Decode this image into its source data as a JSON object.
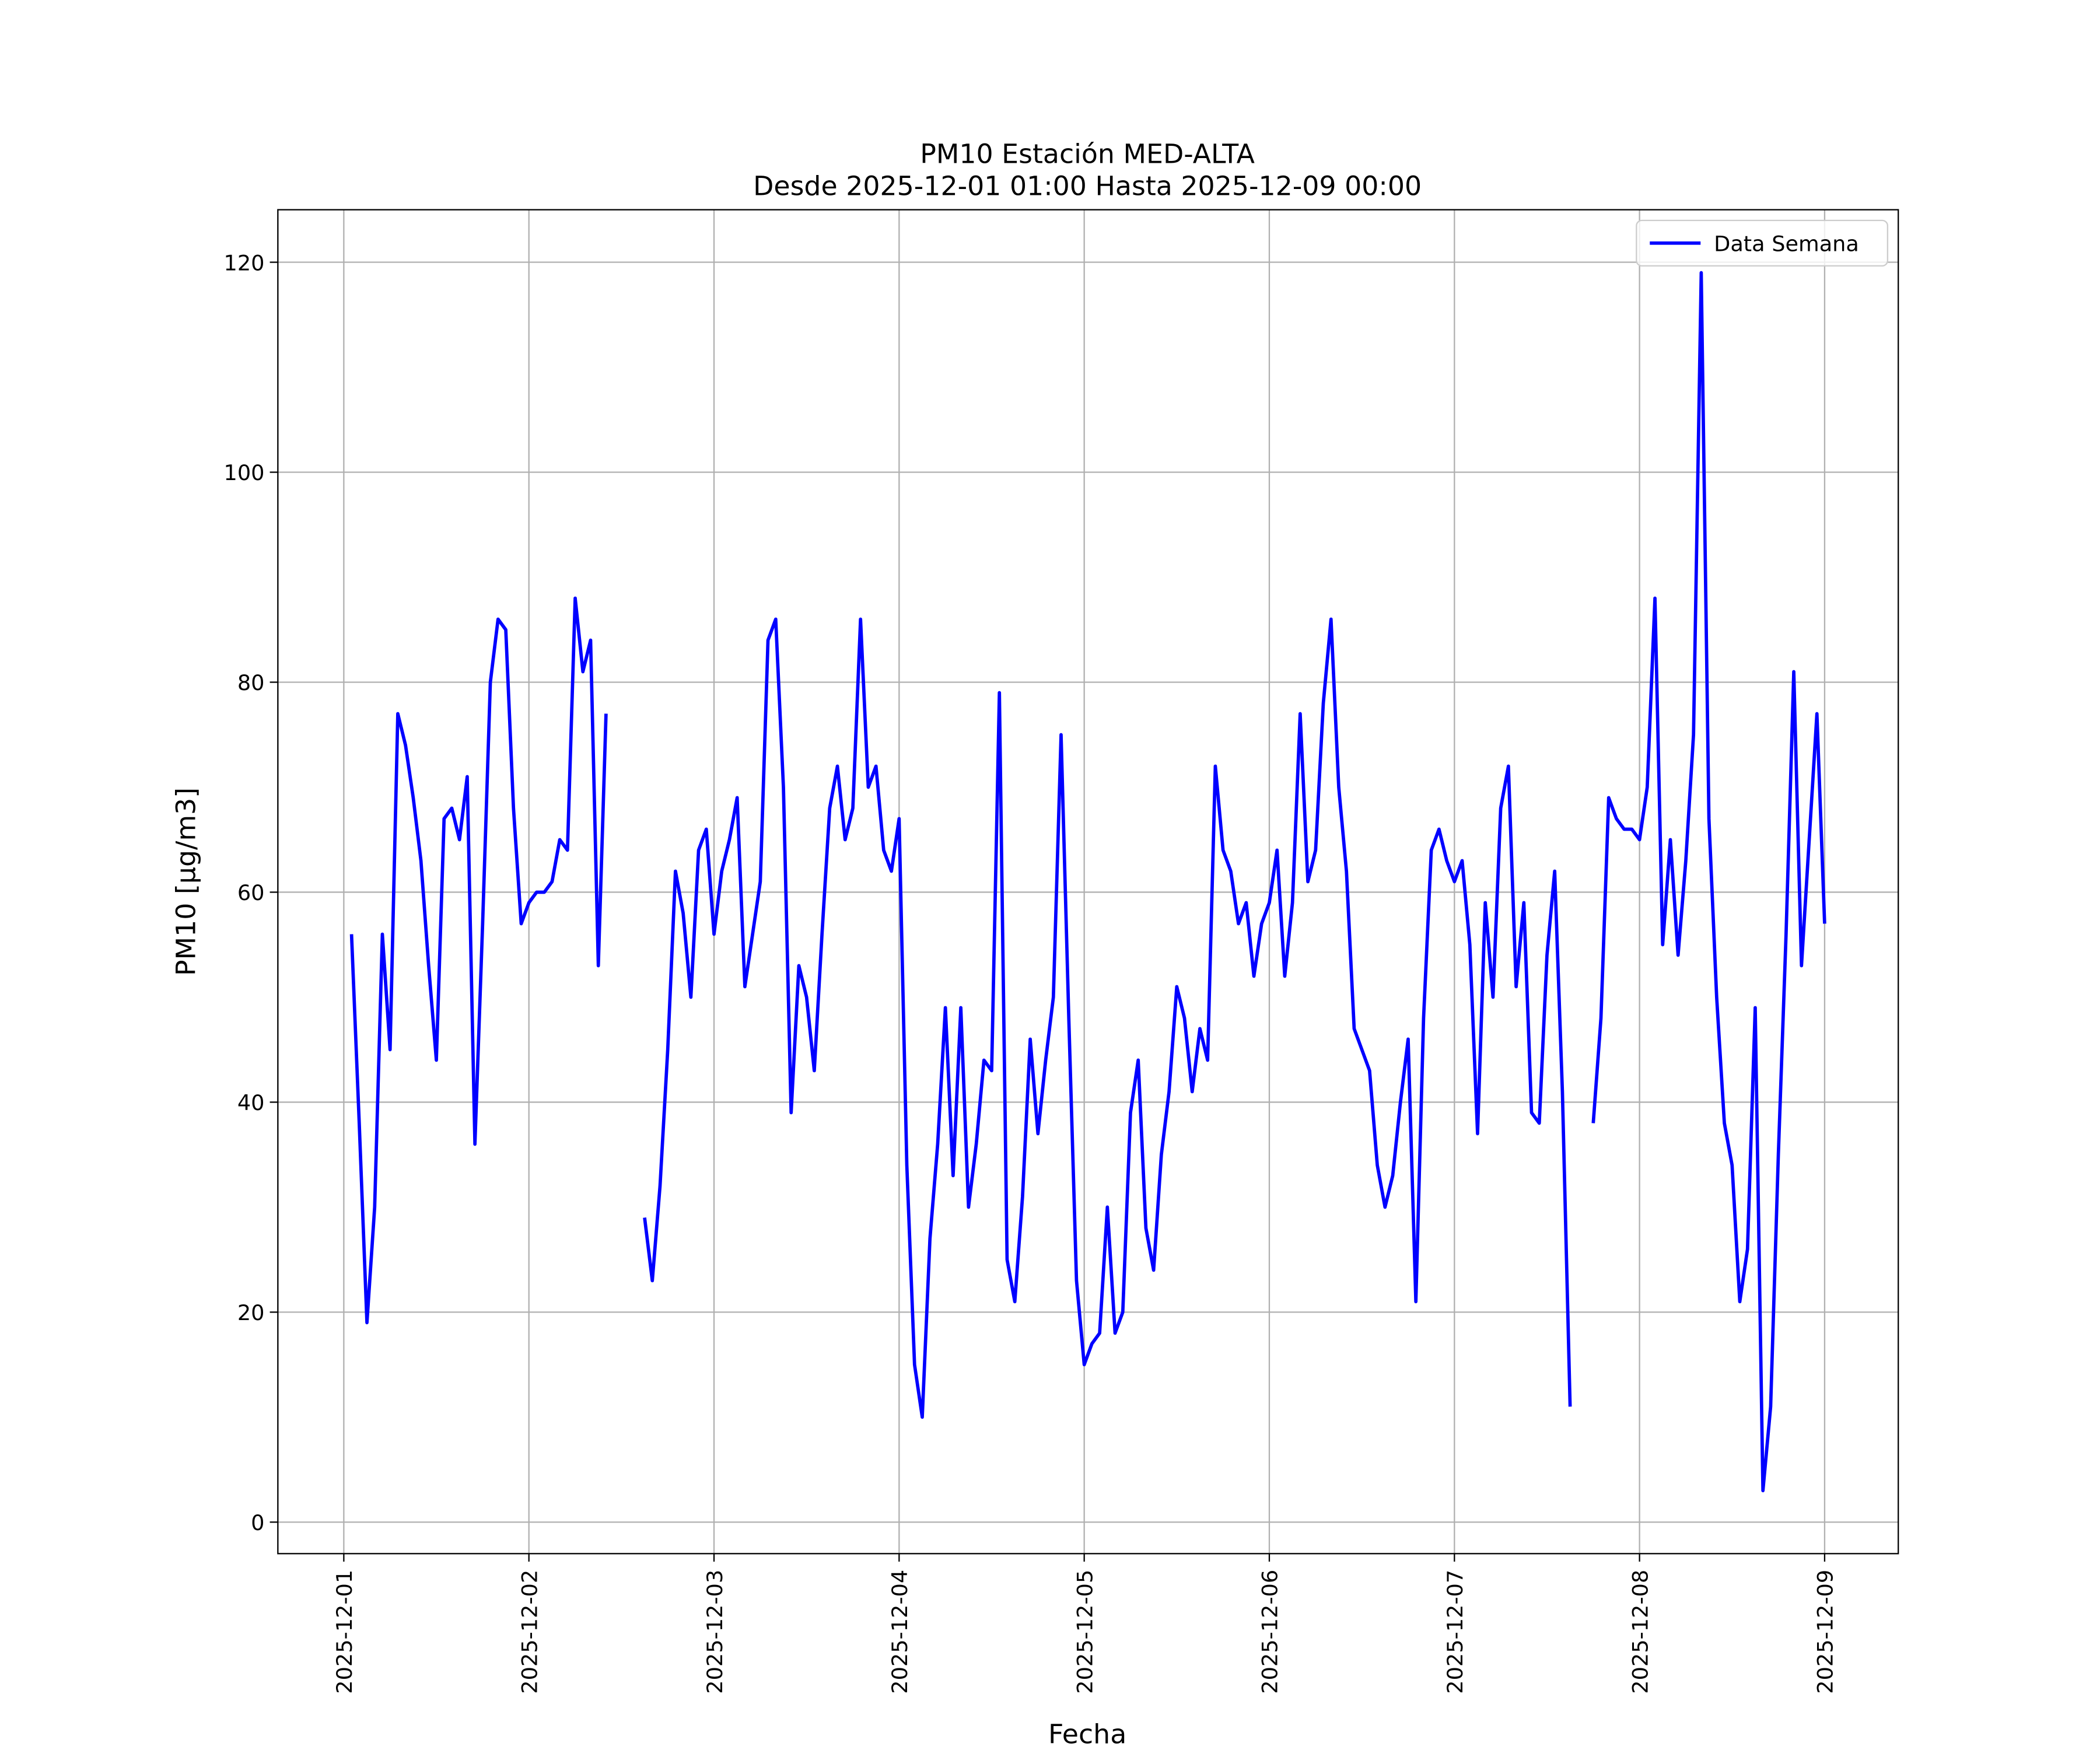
{
  "chart_data": {
    "type": "line",
    "title": "PM10 Estación MED-ALTA",
    "subtitle": "Desde 2025-12-01 01:00 Hasta 2025-12-09 00:00",
    "xlabel": "Fecha",
    "ylabel": "PM10 [μg/m3]",
    "x": [
      "2025-12-01 01:00",
      "2025-12-01 02:00",
      "2025-12-01 03:00",
      "2025-12-01 04:00",
      "2025-12-01 05:00",
      "2025-12-01 06:00",
      "2025-12-01 07:00",
      "2025-12-01 08:00",
      "2025-12-01 09:00",
      "2025-12-01 10:00",
      "2025-12-01 11:00",
      "2025-12-01 12:00",
      "2025-12-01 13:00",
      "2025-12-01 14:00",
      "2025-12-01 15:00",
      "2025-12-01 16:00",
      "2025-12-01 17:00",
      "2025-12-01 18:00",
      "2025-12-01 19:00",
      "2025-12-01 20:00",
      "2025-12-01 21:00",
      "2025-12-01 22:00",
      "2025-12-01 23:00",
      "2025-12-02 00:00",
      "2025-12-02 01:00",
      "2025-12-02 02:00",
      "2025-12-02 03:00",
      "2025-12-02 04:00",
      "2025-12-02 05:00",
      "2025-12-02 06:00",
      "2025-12-02 07:00",
      "2025-12-02 08:00",
      "2025-12-02 09:00",
      "2025-12-02 10:00",
      "2025-12-02 11:00",
      "2025-12-02 12:00",
      "2025-12-02 13:00",
      "2025-12-02 14:00",
      "2025-12-02 15:00",
      "2025-12-02 16:00",
      "2025-12-02 17:00",
      "2025-12-02 18:00",
      "2025-12-02 19:00",
      "2025-12-02 20:00",
      "2025-12-02 21:00",
      "2025-12-02 22:00",
      "2025-12-02 23:00",
      "2025-12-03 00:00",
      "2025-12-03 01:00",
      "2025-12-03 02:00",
      "2025-12-03 03:00",
      "2025-12-03 04:00",
      "2025-12-03 05:00",
      "2025-12-03 06:00",
      "2025-12-03 07:00",
      "2025-12-03 08:00",
      "2025-12-03 09:00",
      "2025-12-03 10:00",
      "2025-12-03 11:00",
      "2025-12-03 12:00",
      "2025-12-03 13:00",
      "2025-12-03 14:00",
      "2025-12-03 15:00",
      "2025-12-03 16:00",
      "2025-12-03 17:00",
      "2025-12-03 18:00",
      "2025-12-03 19:00",
      "2025-12-03 20:00",
      "2025-12-03 21:00",
      "2025-12-03 22:00",
      "2025-12-03 23:00",
      "2025-12-04 00:00",
      "2025-12-04 01:00",
      "2025-12-04 02:00",
      "2025-12-04 03:00",
      "2025-12-04 04:00",
      "2025-12-04 05:00",
      "2025-12-04 06:00",
      "2025-12-04 07:00",
      "2025-12-04 08:00",
      "2025-12-04 09:00",
      "2025-12-04 10:00",
      "2025-12-04 11:00",
      "2025-12-04 12:00",
      "2025-12-04 13:00",
      "2025-12-04 14:00",
      "2025-12-04 15:00",
      "2025-12-04 16:00",
      "2025-12-04 17:00",
      "2025-12-04 18:00",
      "2025-12-04 19:00",
      "2025-12-04 20:00",
      "2025-12-04 21:00",
      "2025-12-04 22:00",
      "2025-12-04 23:00",
      "2025-12-05 00:00",
      "2025-12-05 01:00",
      "2025-12-05 02:00",
      "2025-12-05 03:00",
      "2025-12-05 04:00",
      "2025-12-05 05:00",
      "2025-12-05 06:00",
      "2025-12-05 07:00",
      "2025-12-05 08:00",
      "2025-12-05 09:00",
      "2025-12-05 10:00",
      "2025-12-05 11:00",
      "2025-12-05 12:00",
      "2025-12-05 13:00",
      "2025-12-05 14:00",
      "2025-12-05 15:00",
      "2025-12-05 16:00",
      "2025-12-05 17:00",
      "2025-12-05 18:00",
      "2025-12-05 19:00",
      "2025-12-05 20:00",
      "2025-12-05 21:00",
      "2025-12-05 22:00",
      "2025-12-05 23:00",
      "2025-12-06 00:00",
      "2025-12-06 01:00",
      "2025-12-06 02:00",
      "2025-12-06 03:00",
      "2025-12-06 04:00",
      "2025-12-06 05:00",
      "2025-12-06 06:00",
      "2025-12-06 07:00",
      "2025-12-06 08:00",
      "2025-12-06 09:00",
      "2025-12-06 10:00",
      "2025-12-06 11:00",
      "2025-12-06 12:00",
      "2025-12-06 13:00",
      "2025-12-06 14:00",
      "2025-12-06 15:00",
      "2025-12-06 16:00",
      "2025-12-06 17:00",
      "2025-12-06 18:00",
      "2025-12-06 19:00",
      "2025-12-06 20:00",
      "2025-12-06 21:00",
      "2025-12-06 22:00",
      "2025-12-06 23:00",
      "2025-12-07 00:00",
      "2025-12-07 01:00",
      "2025-12-07 02:00",
      "2025-12-07 03:00",
      "2025-12-07 04:00",
      "2025-12-07 05:00",
      "2025-12-07 06:00",
      "2025-12-07 07:00",
      "2025-12-07 08:00",
      "2025-12-07 09:00",
      "2025-12-07 10:00",
      "2025-12-07 11:00",
      "2025-12-07 12:00",
      "2025-12-07 13:00",
      "2025-12-07 14:00",
      "2025-12-07 15:00",
      "2025-12-07 16:00",
      "2025-12-07 17:00",
      "2025-12-07 18:00",
      "2025-12-07 19:00",
      "2025-12-07 20:00",
      "2025-12-07 21:00",
      "2025-12-07 22:00",
      "2025-12-07 23:00",
      "2025-12-08 00:00",
      "2025-12-08 01:00",
      "2025-12-08 02:00",
      "2025-12-08 03:00",
      "2025-12-08 04:00",
      "2025-12-08 05:00",
      "2025-12-08 06:00",
      "2025-12-08 07:00",
      "2025-12-08 08:00",
      "2025-12-08 09:00",
      "2025-12-08 10:00",
      "2025-12-08 11:00",
      "2025-12-08 12:00",
      "2025-12-08 13:00",
      "2025-12-08 14:00",
      "2025-12-08 15:00",
      "2025-12-08 16:00",
      "2025-12-08 17:00",
      "2025-12-08 18:00",
      "2025-12-08 19:00",
      "2025-12-08 20:00",
      "2025-12-08 21:00",
      "2025-12-08 22:00",
      "2025-12-08 23:00",
      "2025-12-09 00:00"
    ],
    "series": [
      {
        "name": "Data Semana",
        "color": "#0000ff",
        "values": [
          56,
          38,
          19,
          30,
          56,
          45,
          77,
          74,
          69,
          63,
          53,
          44,
          67,
          68,
          65,
          71,
          36,
          57,
          80,
          86,
          85,
          68,
          57,
          59,
          60,
          60,
          61,
          65,
          64,
          88,
          81,
          84,
          53,
          77,
          null,
          null,
          null,
          null,
          29,
          23,
          32,
          45,
          62,
          58,
          50,
          64,
          66,
          56,
          62,
          65,
          69,
          51,
          56,
          61,
          84,
          86,
          70,
          39,
          53,
          50,
          43,
          56,
          68,
          72,
          65,
          68,
          86,
          70,
          72,
          64,
          62,
          67,
          34,
          15,
          10,
          27,
          36,
          49,
          33,
          49,
          30,
          36,
          44,
          43,
          79,
          25,
          21,
          31,
          46,
          37,
          44,
          50,
          75,
          48,
          23,
          15,
          17,
          18,
          30,
          18,
          20,
          39,
          44,
          28,
          24,
          35,
          41,
          51,
          48,
          41,
          47,
          44,
          72,
          64,
          62,
          57,
          59,
          52,
          57,
          59,
          64,
          52,
          59,
          77,
          61,
          64,
          78,
          86,
          70,
          62,
          47,
          45,
          43,
          34,
          30,
          33,
          40,
          46,
          21,
          48,
          64,
          66,
          63,
          61,
          63,
          55,
          37,
          59,
          50,
          68,
          72,
          51,
          59,
          39,
          38,
          54,
          62,
          41,
          11,
          null,
          null,
          38,
          48,
          69,
          67,
          66,
          66,
          65,
          70,
          88,
          55,
          65,
          54,
          63,
          75,
          119,
          67,
          50,
          38,
          34,
          21,
          26,
          49,
          3,
          11,
          35,
          56,
          81,
          53,
          65,
          77,
          57
        ]
      }
    ],
    "xlim": [
      "2025-11-30 15:27",
      "2025-12-09 09:33"
    ],
    "xticks": [
      "2025-12-01",
      "2025-12-02",
      "2025-12-03",
      "2025-12-04",
      "2025-12-05",
      "2025-12-06",
      "2025-12-07",
      "2025-12-08",
      "2025-12-09"
    ],
    "ylim": [
      -3,
      125
    ],
    "yticks": [
      0,
      20,
      40,
      60,
      80,
      100,
      120
    ],
    "grid": true,
    "legend": "upper right"
  }
}
